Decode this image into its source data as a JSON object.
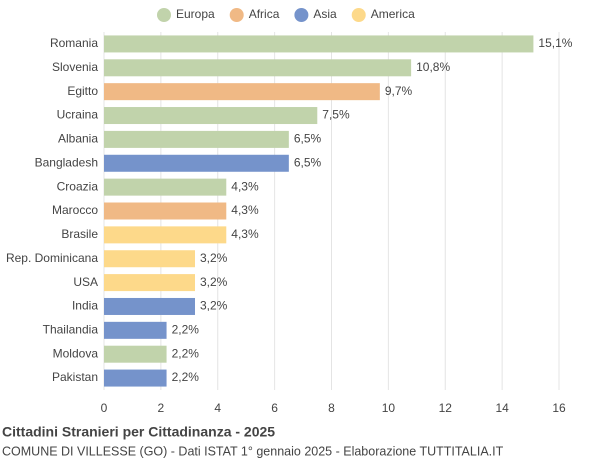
{
  "chart_data": {
    "type": "bar",
    "orientation": "horizontal",
    "title": "Cittadini Stranieri per Cittadinanza - 2025",
    "subtitle": "COMUNE DI VILLESSE (GO) - Dati ISTAT 1° gennaio 2025 - Elaborazione TUTTITALIA.IT",
    "categories": [
      "Romania",
      "Slovenia",
      "Egitto",
      "Ucraina",
      "Albania",
      "Bangladesh",
      "Croazia",
      "Marocco",
      "Brasile",
      "Rep. Dominicana",
      "USA",
      "India",
      "Thailandia",
      "Moldova",
      "Pakistan"
    ],
    "series": [
      {
        "name": "Europa",
        "color": "#c1d3ab",
        "values": [
          15.1,
          10.8,
          null,
          7.5,
          6.5,
          null,
          4.3,
          null,
          null,
          null,
          null,
          null,
          null,
          2.2,
          null
        ],
        "value_labels": [
          "15,1%",
          "10,8%",
          null,
          "7,5%",
          "6,5%",
          null,
          "4,3%",
          null,
          null,
          null,
          null,
          null,
          null,
          "2,2%",
          null
        ]
      },
      {
        "name": "Africa",
        "color": "#f0b985",
        "values": [
          null,
          null,
          9.7,
          null,
          null,
          null,
          null,
          4.3,
          null,
          null,
          null,
          null,
          null,
          null,
          null
        ],
        "value_labels": [
          null,
          null,
          "9,7%",
          null,
          null,
          null,
          null,
          "4,3%",
          null,
          null,
          null,
          null,
          null,
          null,
          null
        ]
      },
      {
        "name": "Asia",
        "color": "#7593cb",
        "values": [
          null,
          null,
          null,
          null,
          null,
          6.5,
          null,
          null,
          null,
          null,
          null,
          3.2,
          2.2,
          null,
          2.2
        ],
        "value_labels": [
          null,
          null,
          null,
          null,
          null,
          "6,5%",
          null,
          null,
          null,
          null,
          null,
          "3,2%",
          "2,2%",
          null,
          "2,2%"
        ]
      },
      {
        "name": "America",
        "color": "#fdd98a",
        "values": [
          null,
          null,
          null,
          null,
          null,
          null,
          null,
          null,
          4.3,
          3.2,
          3.2,
          null,
          null,
          null,
          null
        ],
        "value_labels": [
          null,
          null,
          null,
          null,
          null,
          null,
          null,
          null,
          "4,3%",
          "3,2%",
          "3,2%",
          null,
          null,
          null,
          null
        ]
      }
    ],
    "xlim": [
      0,
      16
    ],
    "xticks": [
      0,
      2,
      4,
      6,
      8,
      10,
      12,
      14,
      16
    ],
    "grid": true
  }
}
